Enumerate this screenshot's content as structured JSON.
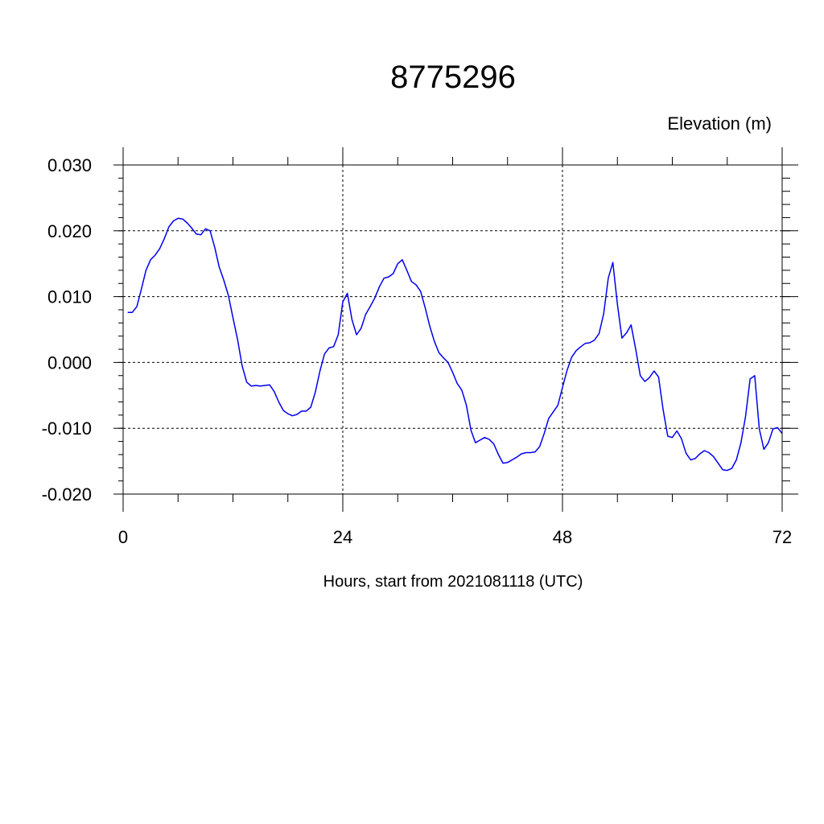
{
  "chart_data": {
    "type": "line",
    "title": "8775296",
    "ylabel": "Elevation (m)",
    "xlabel": "Hours, start from 2021081118 (UTC)",
    "xlim": [
      0,
      72
    ],
    "ylim": [
      -0.02,
      0.03
    ],
    "x_ticks": [
      0,
      24,
      48,
      72
    ],
    "x_tick_labels": [
      "0",
      "24",
      "48",
      "72"
    ],
    "y_ticks": [
      -0.02,
      -0.01,
      0.0,
      0.01,
      0.02,
      0.03
    ],
    "y_tick_labels": [
      "-0.020",
      "-0.010",
      "0.000",
      "0.010",
      "0.020",
      "0.030"
    ],
    "grid": true,
    "line_color": "#0000ee",
    "series": [
      {
        "x": [
          0.5,
          1,
          1.5,
          2,
          2.5,
          3,
          3.5,
          4,
          4.5,
          5,
          5.5,
          6,
          6.5,
          7,
          7.5,
          8,
          8.5,
          9,
          9.5,
          10,
          10.5,
          11,
          11.5,
          12,
          12.5,
          13,
          13.5,
          14,
          14.5,
          15,
          15.5,
          16,
          16.5,
          17,
          17.5,
          18,
          18.5,
          19,
          19.5,
          20,
          20.5,
          21,
          21.5,
          22,
          22.5,
          23,
          23.5,
          24,
          24.5,
          25,
          25.5,
          26,
          26.5,
          27,
          27.5,
          28,
          28.5,
          29,
          29.5,
          30,
          30.5,
          31,
          31.5,
          32,
          32.5,
          33,
          33.5,
          34,
          34.5,
          35,
          35.5,
          36,
          36.5,
          37,
          37.5,
          38,
          38.5,
          39,
          39.5,
          40,
          40.5,
          41,
          41.5,
          42,
          42.5,
          43,
          43.5,
          44,
          44.5,
          45,
          45.5,
          46,
          46.5,
          47,
          47.5,
          48,
          48.5,
          49,
          49.5,
          50,
          50.5,
          51,
          51.5,
          52,
          52.5,
          53,
          53.5,
          54,
          54.5,
          55,
          55.5,
          56,
          56.5,
          57,
          57.5,
          58,
          58.5,
          59,
          59.5,
          60,
          60.5,
          61,
          61.5,
          62,
          62.5,
          63,
          63.5,
          64,
          64.5,
          65,
          65.5,
          66,
          66.5,
          67,
          67.5,
          68,
          68.5,
          69,
          69.5,
          70,
          70.5,
          71,
          71.5,
          72
        ],
        "y": [
          0.0076,
          0.0076,
          0.0085,
          0.0112,
          0.014,
          0.0156,
          0.0163,
          0.0173,
          0.0188,
          0.0206,
          0.0215,
          0.0219,
          0.0218,
          0.0212,
          0.0204,
          0.0195,
          0.0194,
          0.0203,
          0.02,
          0.0175,
          0.0145,
          0.0125,
          0.0102,
          0.0068,
          0.0035,
          -0.0005,
          -0.003,
          -0.0036,
          -0.0035,
          -0.0036,
          -0.0035,
          -0.0034,
          -0.0044,
          -0.006,
          -0.0073,
          -0.0078,
          -0.0081,
          -0.0079,
          -0.0074,
          -0.0074,
          -0.0068,
          -0.0045,
          -0.0013,
          0.0013,
          0.0022,
          0.0024,
          0.0042,
          0.0092,
          0.0105,
          0.0065,
          0.0042,
          0.0052,
          0.0073,
          0.0085,
          0.0098,
          0.0115,
          0.0128,
          0.013,
          0.0135,
          0.015,
          0.0156,
          0.014,
          0.0123,
          0.0118,
          0.0108,
          0.0083,
          0.0055,
          0.0032,
          0.0015,
          0.0007,
          0.0,
          -0.0015,
          -0.0032,
          -0.0042,
          -0.0065,
          -0.0103,
          -0.0122,
          -0.0118,
          -0.0114,
          -0.0117,
          -0.0124,
          -0.014,
          -0.0153,
          -0.0152,
          -0.0148,
          -0.0144,
          -0.0139,
          -0.0137,
          -0.0137,
          -0.0136,
          -0.0128,
          -0.0108,
          -0.0085,
          -0.0075,
          -0.0065,
          -0.0038,
          -0.0012,
          0.0008,
          0.0018,
          0.0024,
          0.0029,
          0.003,
          0.0034,
          0.0044,
          0.0074,
          0.0128,
          0.0152,
          0.0088,
          0.0037,
          0.0045,
          0.0057,
          0.002,
          -0.002,
          -0.0029,
          -0.0023,
          -0.0013,
          -0.0022,
          -0.0072,
          -0.0112,
          -0.0114,
          -0.0104,
          -0.0116,
          -0.0138,
          -0.0148,
          -0.0146,
          -0.0139,
          -0.0134,
          -0.0137,
          -0.0143,
          -0.0153,
          -0.0163,
          -0.0164,
          -0.0161,
          -0.0148,
          -0.0122,
          -0.0082,
          -0.0025,
          -0.002,
          -0.0101,
          -0.0132,
          -0.0122,
          -0.0101,
          -0.0099,
          -0.0108
        ]
      }
    ]
  }
}
